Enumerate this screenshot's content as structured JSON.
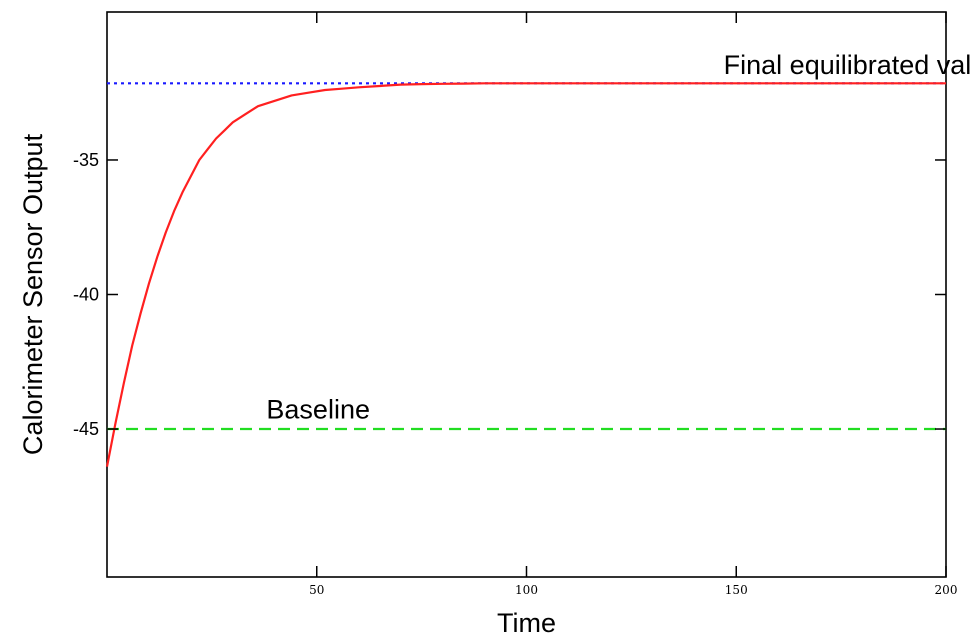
{
  "chart_data": {
    "type": "line",
    "title": "",
    "xlabel": "Time",
    "ylabel": "Calorimeter Sensor Output",
    "xlim": [
      0,
      200
    ],
    "ylim": [
      -50.5,
      -29.5
    ],
    "x_ticks": [
      50,
      100,
      150,
      200
    ],
    "x_tick_labels": [
      "50",
      "100",
      "150",
      "200"
    ],
    "y_ticks": [
      -45,
      -40,
      -35
    ],
    "y_tick_labels": [
      "-45",
      "-40",
      "-35"
    ],
    "grid": false,
    "legend": "none",
    "series": [
      {
        "color": "#ff2020",
        "style": "solid",
        "x": [
          0,
          2,
          4,
          6,
          8,
          10,
          12,
          14,
          16,
          18,
          20,
          22,
          24,
          26,
          28,
          30,
          33,
          36,
          40,
          44,
          48,
          52,
          56,
          60,
          65,
          70,
          75,
          80,
          85,
          90,
          100,
          120,
          150,
          200
        ],
        "y": [
          -46.4,
          -44.8,
          -43.3,
          -41.9,
          -40.7,
          -39.6,
          -38.6,
          -37.7,
          -36.9,
          -36.2,
          -35.6,
          -35.0,
          -34.6,
          -34.2,
          -33.9,
          -33.6,
          -33.3,
          -33.0,
          -32.8,
          -32.6,
          -32.5,
          -32.4,
          -32.35,
          -32.3,
          -32.25,
          -32.2,
          -32.18,
          -32.17,
          -32.16,
          -32.15,
          -32.15,
          -32.15,
          -32.15,
          -32.15
        ]
      },
      {
        "color": "#1a1aff",
        "style": "dotted",
        "x": [
          0,
          200
        ],
        "y": [
          -32.15,
          -32.15
        ]
      },
      {
        "color": "#22dd22",
        "style": "dashed",
        "x": [
          0,
          200
        ],
        "y": [
          -45.0,
          -45.0
        ]
      }
    ],
    "annotations": [
      {
        "text": "Final equilibrated value",
        "x": 147,
        "y": -31.8
      },
      {
        "text": "Baseline",
        "x": 38,
        "y": -44.6
      }
    ]
  }
}
